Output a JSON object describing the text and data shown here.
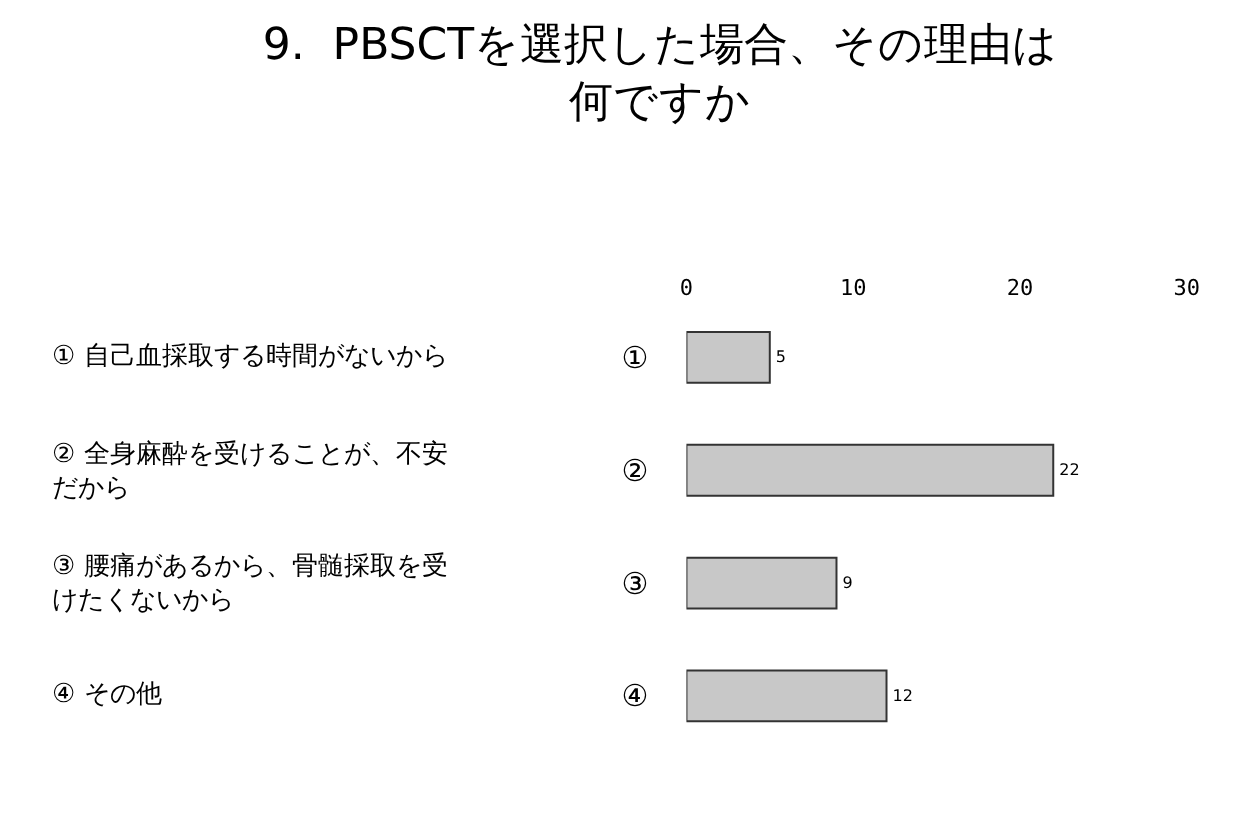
{
  "chart_data": {
    "type": "bar",
    "orientation": "horizontal",
    "title": "9.  PBSCTを選択した場合、その理由は何ですか",
    "categories": [
      "①",
      "②",
      "③",
      "④"
    ],
    "values": [
      5,
      22,
      9,
      12
    ],
    "color": "#c8c8c8",
    "xlim": [
      0,
      30
    ],
    "xticks": [
      0,
      10,
      20,
      30
    ],
    "data_labels": true,
    "annotations": [
      "① 自己血採取する時間がないから",
      "② 全身麻酔を受けることが、不安だから",
      "③ 腰痛があるから、骨髄採取を受けたくないから",
      "④ その他"
    ]
  }
}
